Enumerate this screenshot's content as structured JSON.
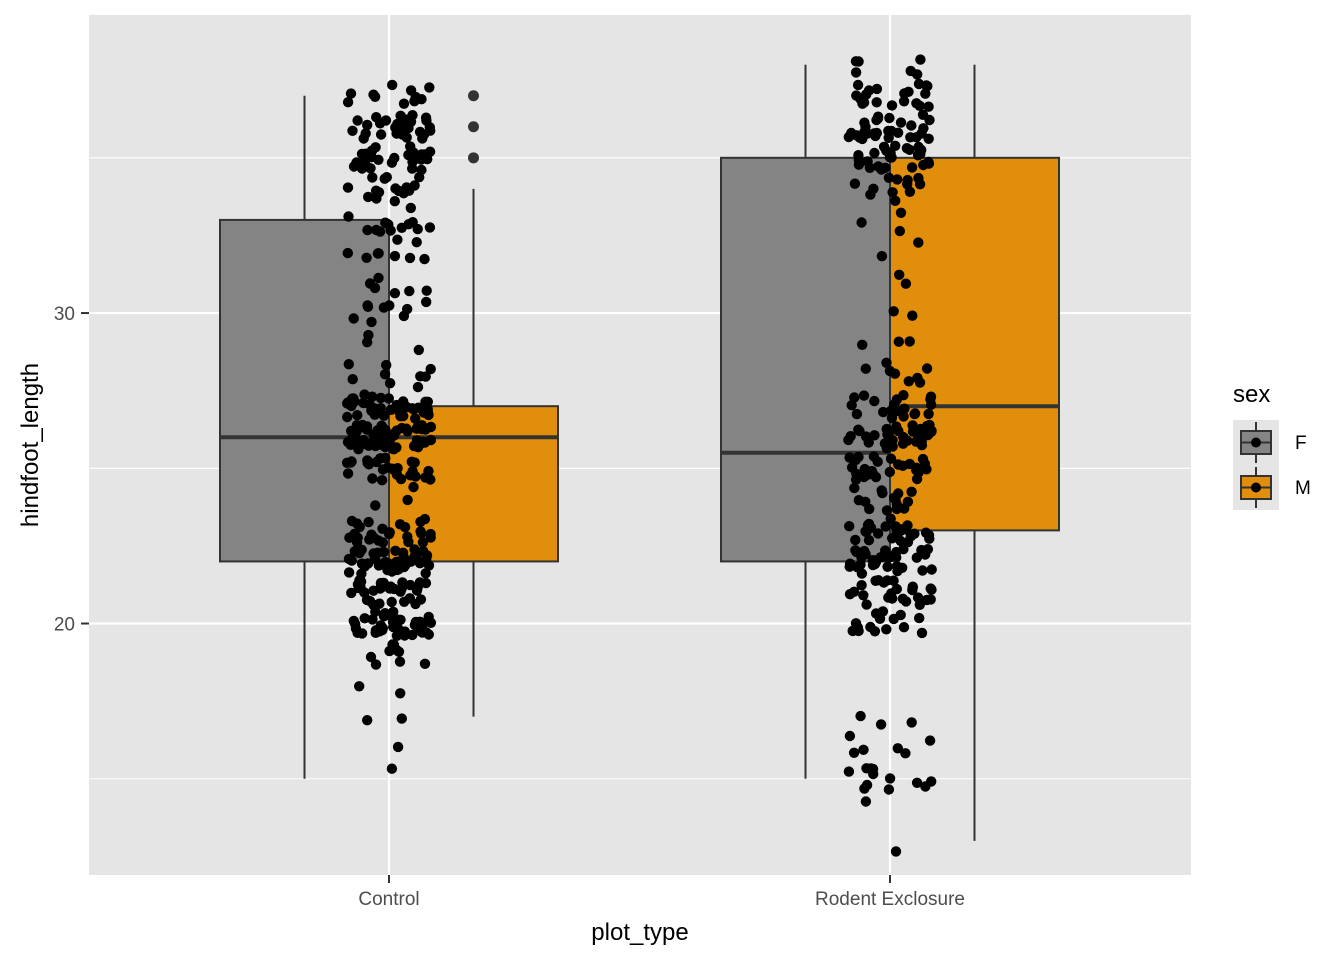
{
  "colors": {
    "panel_bg": "#e5e5e5",
    "grid": "#ffffff",
    "F": "#848484",
    "M": "#e08e0b",
    "box_line": "#333333",
    "point": "#000000",
    "tick_text": "#4d4d4d"
  },
  "chart_data": {
    "type": "boxplot",
    "xlabel": "plot_type",
    "ylabel": "hindfoot_length",
    "categories": [
      "Control",
      "Rodent Exclosure"
    ],
    "ylim": [
      11.9,
      39.6
    ],
    "yticks": [
      20,
      30
    ],
    "grid": true,
    "legend": {
      "title": "sex",
      "position": "right",
      "entries": [
        "F",
        "M"
      ]
    },
    "series": [
      {
        "name": "F",
        "boxes": [
          {
            "category": "Control",
            "lower_whisker": 15,
            "q1": 22,
            "median": 26,
            "q3": 33,
            "upper_whisker": 37,
            "outliers": []
          },
          {
            "category": "Rodent Exclosure",
            "lower_whisker": 15,
            "q1": 22,
            "median": 25.5,
            "q3": 35,
            "upper_whisker": 38,
            "outliers": []
          }
        ]
      },
      {
        "name": "M",
        "boxes": [
          {
            "category": "Control",
            "lower_whisker": 17,
            "q1": 22,
            "median": 26,
            "q3": 27,
            "upper_whisker": 34,
            "outliers": [
              35,
              36,
              37
            ]
          },
          {
            "category": "Rodent Exclosure",
            "lower_whisker": 13,
            "q1": 23,
            "median": 27,
            "q3": 35,
            "upper_whisker": 38,
            "outliers": []
          }
        ]
      }
    ],
    "jitter_points": [
      {
        "category": "Control",
        "count": 420,
        "value_weights": [
          [
            15,
            1
          ],
          [
            16,
            1
          ],
          [
            17,
            2
          ],
          [
            18,
            2
          ],
          [
            19,
            8
          ],
          [
            20,
            35
          ],
          [
            21,
            30
          ],
          [
            22,
            40
          ],
          [
            23,
            25
          ],
          [
            24,
            3
          ],
          [
            25,
            25
          ],
          [
            26,
            55
          ],
          [
            27,
            40
          ],
          [
            28,
            8
          ],
          [
            29,
            3
          ],
          [
            30,
            8
          ],
          [
            31,
            6
          ],
          [
            32,
            8
          ],
          [
            33,
            12
          ],
          [
            34,
            15
          ],
          [
            35,
            25
          ],
          [
            36,
            30
          ],
          [
            37,
            10
          ]
        ]
      },
      {
        "category": "Rodent Exclosure",
        "count": 330,
        "value_weights": [
          [
            13,
            1
          ],
          [
            14,
            1
          ],
          [
            15,
            12
          ],
          [
            16,
            6
          ],
          [
            17,
            3
          ],
          [
            20,
            15
          ],
          [
            21,
            25
          ],
          [
            22,
            35
          ],
          [
            23,
            25
          ],
          [
            24,
            15
          ],
          [
            25,
            30
          ],
          [
            26,
            35
          ],
          [
            27,
            20
          ],
          [
            28,
            8
          ],
          [
            29,
            3
          ],
          [
            30,
            2
          ],
          [
            31,
            2
          ],
          [
            32,
            2
          ],
          [
            33,
            3
          ],
          [
            34,
            12
          ],
          [
            35,
            25
          ],
          [
            36,
            30
          ],
          [
            37,
            20
          ],
          [
            38,
            6
          ]
        ]
      }
    ]
  }
}
